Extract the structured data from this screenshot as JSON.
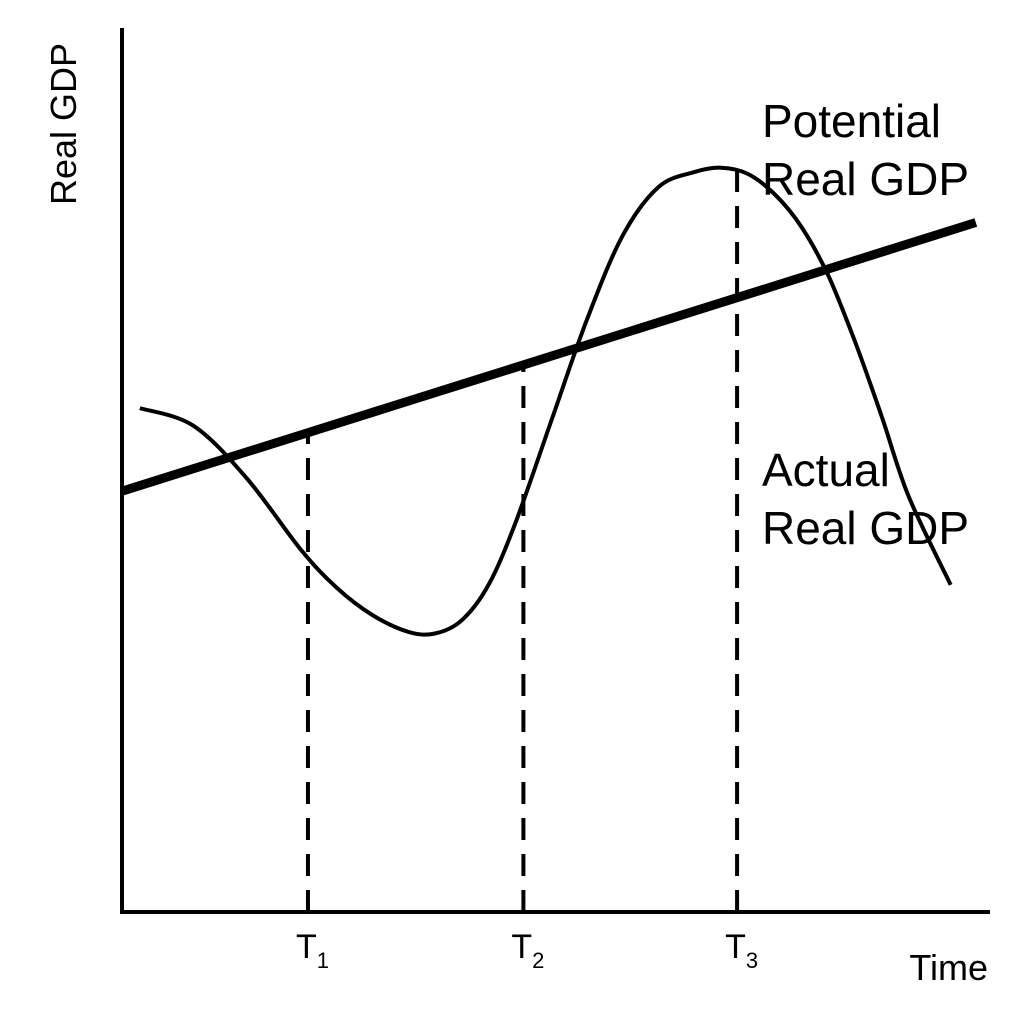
{
  "chart_data": {
    "type": "line",
    "title": "",
    "xlabel": "Time",
    "ylabel": "Real GDP",
    "grid": false,
    "legend": "none",
    "axes": {
      "x_ticks_numeric": false,
      "y_ticks_numeric": false
    },
    "xlim": [
      0,
      100
    ],
    "ylim": [
      0,
      100
    ],
    "ticks": [
      {
        "base": "T",
        "sub": "1",
        "x": 20.8
      },
      {
        "base": "T",
        "sub": "2",
        "x": 44.9
      },
      {
        "base": "T",
        "sub": "3",
        "x": 68.8
      }
    ],
    "series": [
      {
        "key": "potential",
        "name_lines": [
          "Potential",
          "Real GDP"
        ],
        "style": "thick",
        "x": [
          0,
          95.5
        ],
        "y": [
          47.6,
          78.0
        ]
      },
      {
        "key": "actual",
        "name_lines": [
          "Actual",
          "Real GDP"
        ],
        "style": "thin",
        "x": [
          2.0,
          8.0,
          14.0,
          20.0,
          24.0,
          28.0,
          32.0,
          35.0,
          38.0,
          41.0,
          44.0,
          48.0,
          52.0,
          56.0,
          60.0,
          64.0,
          67.0,
          70.0,
          73.0,
          76.0,
          79.0,
          82.0,
          85.0,
          88.0,
          92.7
        ],
        "y": [
          57.0,
          55.0,
          49.0,
          41.0,
          36.7,
          33.6,
          31.7,
          31.5,
          33.0,
          37.0,
          44.0,
          55.5,
          67.0,
          76.5,
          82.0,
          83.7,
          84.2,
          83.5,
          81.2,
          77.5,
          72.0,
          64.5,
          56.0,
          47.0,
          37.0
        ]
      }
    ],
    "guides": [
      {
        "tick": 0,
        "to_series": "potential"
      },
      {
        "tick": 1,
        "to_series": "potential"
      },
      {
        "tick": 2,
        "to_series": "actual"
      }
    ]
  }
}
